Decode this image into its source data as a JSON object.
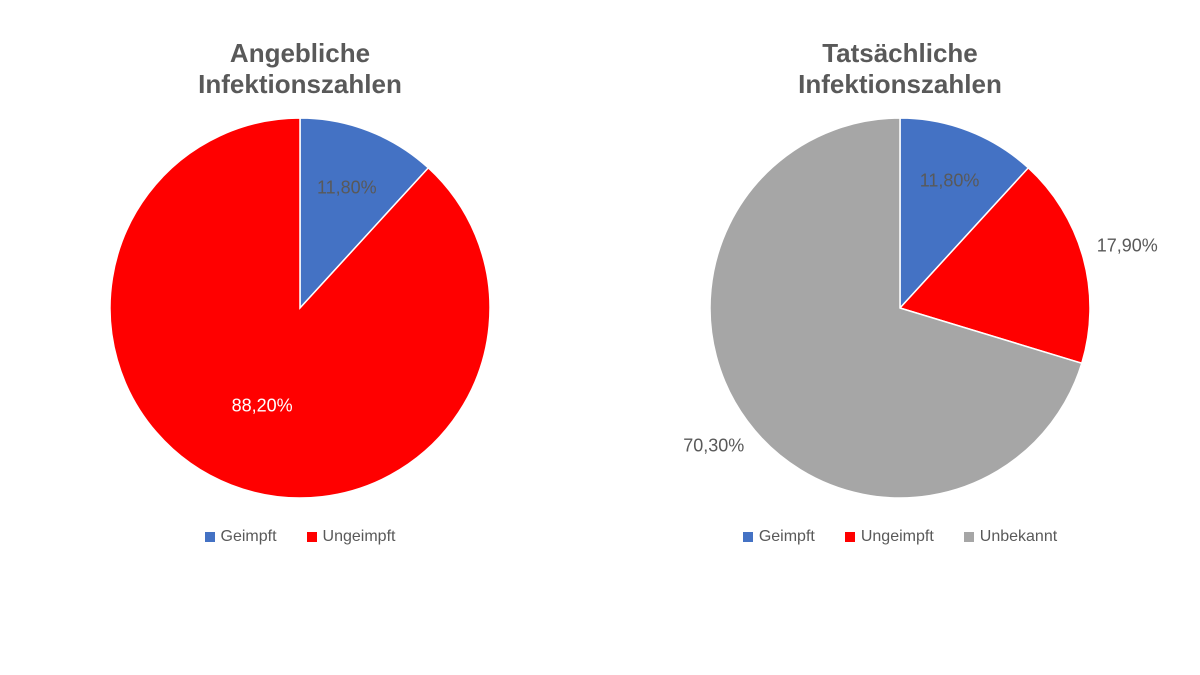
{
  "background_color": "#ffffff",
  "title_color": "#595959",
  "title_fontsize": 26,
  "title_fontweight": "bold",
  "legend_fontsize": 16,
  "legend_text_color": "#595959",
  "legend_swatch_size": 10,
  "pie_diameter": 380,
  "slice_border_color": "#ffffff",
  "slice_border_width": 1.5,
  "left": {
    "type": "pie",
    "title": "Angebliche\nInfektionszahlen",
    "slices": [
      {
        "name": "Geimpft",
        "value": 11.8,
        "display": "11,80%",
        "color": "#4472c4",
        "label_color": "#595959",
        "fontsize": 18,
        "label_r": 0.68
      },
      {
        "name": "Ungeimpft",
        "value": 88.2,
        "display": "88,20%",
        "color": "#ff0000",
        "label_color": "#ffffff",
        "fontsize": 18,
        "label_r": 0.55
      }
    ],
    "legend": [
      {
        "label": "Geimpft",
        "color": "#4472c4"
      },
      {
        "label": "Ungeimpft",
        "color": "#ff0000"
      }
    ]
  },
  "right": {
    "type": "pie",
    "title": "Tatsächliche\nInfektionszahlen",
    "slices": [
      {
        "name": "Geimpft",
        "value": 11.8,
        "display": "11,80%",
        "color": "#4472c4",
        "label_color": "#595959",
        "fontsize": 18,
        "label_r": 0.72
      },
      {
        "name": "Ungeimpft",
        "value": 17.9,
        "display": "17,90%",
        "color": "#ff0000",
        "label_color": "#595959",
        "fontsize": 18,
        "label_r": 1.24
      },
      {
        "name": "Unbekannt",
        "value": 70.3,
        "display": "70,30%",
        "color": "#a6a6a6",
        "label_color": "#595959",
        "fontsize": 18,
        "label_r": 1.22
      }
    ],
    "legend": [
      {
        "label": "Geimpft",
        "color": "#4472c4"
      },
      {
        "label": "Ungeimpft",
        "color": "#ff0000"
      },
      {
        "label": "Unbekannt",
        "color": "#a6a6a6"
      }
    ]
  }
}
